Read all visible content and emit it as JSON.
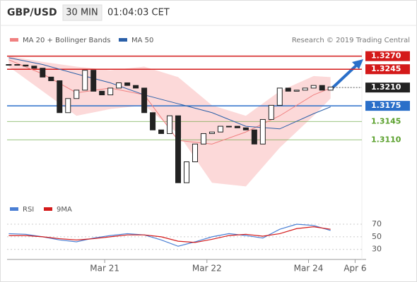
{
  "header": {
    "symbol": "GBP/USD",
    "interval": "30 MIN",
    "time": "01:04:03 CET"
  },
  "chart_data": [
    {
      "type": "candlestick",
      "legend": [
        {
          "name": "MA 20 + Bollinger Bands",
          "color": "#f08080"
        },
        {
          "name": "MA 50",
          "color": "#2a5fa8"
        }
      ],
      "source": "Research © 2019 Trading Central",
      "close": [
        1.3254,
        1.3253,
        1.3251,
        1.3247,
        1.323,
        1.3223,
        1.3162,
        1.3189,
        1.3205,
        1.3243,
        1.3203,
        1.3196,
        1.3209,
        1.3219,
        1.3214,
        1.3209,
        1.3162,
        1.3129,
        1.3122,
        1.3156,
        1.3028,
        1.3068,
        1.3102,
        1.3122,
        1.3125,
        1.3136,
        1.3136,
        1.3133,
        1.3129,
        1.3102,
        1.3149,
        1.3176,
        1.3209,
        1.3203,
        1.3205,
        1.3209,
        1.3214,
        1.3205,
        1.3211
      ],
      "ma_x": [
        0,
        4,
        8,
        12,
        16,
        20,
        24,
        28,
        32,
        36,
        38
      ],
      "ma50": [
        1.3267,
        1.3254,
        1.3236,
        1.3219,
        1.3196,
        1.3179,
        1.3162,
        1.3136,
        1.3131,
        1.316,
        1.3173
      ],
      "ma20": [
        1.3263,
        1.3236,
        1.32,
        1.3209,
        1.3196,
        1.3109,
        1.3102,
        1.3125,
        1.3156,
        1.3196,
        1.3209
      ],
      "band_upper": [
        1.327,
        1.3259,
        1.325,
        1.3243,
        1.325,
        1.323,
        1.3176,
        1.3156,
        1.3203,
        1.3232,
        1.323
      ],
      "band_lower": [
        1.325,
        1.3203,
        1.3156,
        1.3169,
        1.3176,
        1.3122,
        1.3028,
        1.3021,
        1.3095,
        1.3156,
        1.3189
      ],
      "levels": [
        {
          "value": 1.327,
          "label": "1.3270",
          "color": "#d41a1a",
          "box": true
        },
        {
          "value": 1.3245,
          "label": "1.3245",
          "color": "#d41a1a",
          "box": true
        },
        {
          "value": 1.321,
          "label": "1.3210",
          "color": "#222222",
          "box": true,
          "dotted": true
        },
        {
          "value": 1.3175,
          "label": "1.3175",
          "color": "#2a6fc9",
          "box": true
        },
        {
          "value": 1.3145,
          "label": "1.3145",
          "color": "#5aa02c",
          "box": false
        },
        {
          "value": 1.311,
          "label": "1.3110",
          "color": "#5aa02c",
          "box": false
        }
      ],
      "ylim": [
        1.3,
        1.3283
      ],
      "xlim": [
        -0.2,
        42.2
      ]
    },
    {
      "type": "line",
      "series": [
        {
          "name": "RSI",
          "color": "#4a7fd4",
          "values": [
            55,
            54,
            50,
            45,
            42,
            48,
            52,
            55,
            53,
            45,
            35,
            42,
            50,
            55,
            52,
            48,
            62,
            70,
            68,
            60
          ]
        },
        {
          "name": "9MA",
          "color": "#d41a1a",
          "values": [
            52,
            52,
            50,
            47,
            45,
            47,
            50,
            53,
            53,
            50,
            43,
            41,
            46,
            52,
            54,
            51,
            55,
            63,
            66,
            62
          ]
        }
      ],
      "x": [
        0,
        2,
        4,
        6,
        8,
        10,
        12,
        14,
        16,
        18,
        20,
        22,
        24,
        26,
        28,
        30,
        32,
        34,
        36,
        38
      ],
      "ylim": [
        14,
        79
      ],
      "yticks": [
        70,
        50,
        30
      ],
      "xlim": [
        -0.2,
        42.2
      ],
      "xticks": [
        {
          "value": 11.33,
          "label": "Mar 21"
        },
        {
          "value": 23.4,
          "label": "Mar 22"
        },
        {
          "value": 35.4,
          "label": "Mar 24"
        },
        {
          "value": 40.9,
          "label": "Apr 6"
        }
      ]
    }
  ]
}
